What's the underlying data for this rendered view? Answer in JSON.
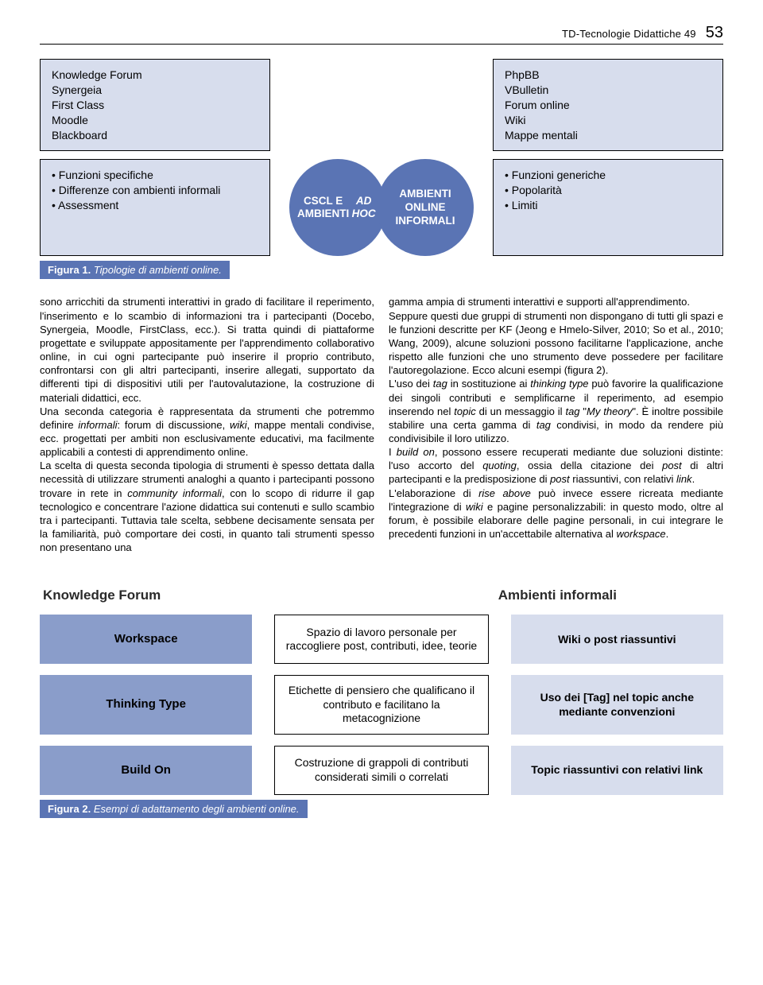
{
  "header": {
    "journal": "TD-Tecnologie Didattiche 49",
    "page": "53"
  },
  "fig1": {
    "top_left_lines": [
      "Knowledge Forum",
      "Synergeia",
      "First Class",
      "Moodle",
      "Blackboard"
    ],
    "top_right_lines": [
      "PhpBB",
      "VBulletin",
      "Forum online",
      "Wiki",
      "Mappe mentali"
    ],
    "bot_left_items": [
      "Funzioni specifiche",
      "Differenze con ambienti informali",
      "Assessment"
    ],
    "circle_left_lines": [
      "CSCL E",
      "AMBIENTI",
      "AD HOC"
    ],
    "circle_right_lines": [
      "AMBIENTI",
      "ONLINE",
      "INFORMALI"
    ],
    "bot_right_items": [
      "Funzioni generiche",
      "Popolarità",
      "Limiti"
    ],
    "caption_label": "Figura 1.",
    "caption_text": "Tipologie di ambienti online.",
    "colors": {
      "box_bg": "#d7dded",
      "circle_bg": "#5a74b4",
      "circle_text": "#ffffff",
      "border": "#000000"
    }
  },
  "body": {
    "col1": "sono arricchiti da strumenti interattivi in grado di facilitare il reperimento, l'inserimento e lo scambio di informazioni tra i partecipanti (Docebo, Synergeia, Moodle, FirstClass, ecc.). Si tratta quindi di piattaforme progettate e sviluppate appositamente per l'apprendimento collaborativo online, in cui ogni partecipante può inserire il proprio contributo, confrontarsi con gli altri partecipanti, inserire allegati, supportato da differenti tipi di dispositivi utili per l'autovalutazione, la costruzione di materiali didattici, ecc.\nUna seconda categoria è rappresentata da strumenti che potremmo definire informali: forum di discussione, wiki, mappe mentali condivise, ecc. progettati per ambiti non esclusivamente educativi, ma facilmente applicabili a contesti di apprendimento online.\nLa scelta di questa seconda tipologia di strumenti è spesso dettata dalla necessità di utilizzare strumenti analoghi a quanto i partecipanti possono trovare in rete in community informali, con lo scopo di ridurre il gap tecnologico e concentrare l'azione didattica sui contenuti e sullo scambio tra i partecipanti. Tuttavia tale scelta, sebbene decisamente sensata per la familiarità, può comportare dei costi, in quanto tali strumenti spesso non presentano una",
    "col2": "gamma ampia di strumenti interattivi e supporti all'apprendimento.\nSeppure questi due gruppi di strumenti non dispongano di tutti gli spazi e le funzioni descritte per KF (Jeong e Hmelo-Silver, 2010; So et al., 2010; Wang, 2009), alcune soluzioni possono facilitarne l'applicazione, anche rispetto alle funzioni che uno strumento deve possedere per facilitare l'autoregolazione. Ecco alcuni esempi (figura 2).\nL'uso dei tag in sostituzione ai thinking type può favorire la qualificazione dei singoli contributi e semplificarne il reperimento, ad esempio inserendo nel topic di un messaggio il tag \"My theory\". È inoltre possibile stabilire una certa gamma di tag condivisi, in modo da rendere più condivisibile il loro utilizzo.\nI build on, possono essere recuperati mediante due soluzioni distinte: l'uso accorto del quoting, ossia della citazione dei post di altri partecipanti e la predisposizione di post riassuntivi, con relativi link.\nL'elaborazione di rise above può invece essere ricreata mediante l'integrazione di wiki e pagine personalizzabili: in questo modo, oltre al forum, è possibile elaborare delle pagine personali, in cui integrare le precedenti funzioni in un'accettabile alternativa al workspace."
  },
  "fig2": {
    "head_left": "Knowledge Forum",
    "head_right": "Ambienti informali",
    "rows": [
      {
        "left": "Workspace",
        "mid": "Spazio di lavoro personale per raccogliere post, contributi, idee, teorie",
        "right": "Wiki o post riassuntivi"
      },
      {
        "left": "Thinking Type",
        "mid": "Etichette di pensiero che qualificano il contributo e facilitano la metacognizione",
        "right": "Uso dei [Tag] nel topic anche mediante convenzioni"
      },
      {
        "left": "Build On",
        "mid": "Costruzione di grappoli di contributi considerati simili o correlati",
        "right": "Topic riassuntivi con relativi link"
      }
    ],
    "caption_label": "Figura 2.",
    "caption_text": "Esempi di adattamento degli ambienti online.",
    "colors": {
      "blue_bg": "#8a9dca",
      "grey_bg": "#d7dded",
      "border": "#000000"
    }
  }
}
